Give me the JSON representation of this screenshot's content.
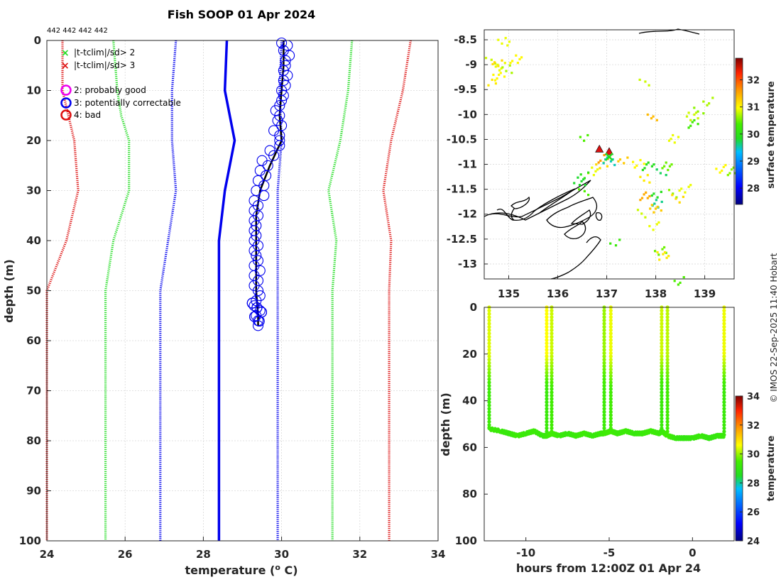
{
  "colors": {
    "green": "#22dd22",
    "red": "#dd1111",
    "blue": "#0000ee",
    "black": "#000000",
    "magenta": "#ee00ee"
  },
  "credit": "© IMOS 22-Sep-2025 11:40 Hobart",
  "chart_data": [
    {
      "type": "line",
      "title": "Fish SOOP 01 Apr 2024",
      "annotation": "442 442 442 442",
      "xlabel": "temperature (o C)",
      "xlabel_main": "temperature (",
      "xlabel_sup": "o",
      "xlabel_end": " C)",
      "ylabel": "depth (m)",
      "xlim": [
        24,
        34
      ],
      "ylim": [
        0,
        100
      ],
      "y_reversed": true,
      "grid": true,
      "xticks": [
        24,
        26,
        28,
        30,
        32,
        34
      ],
      "yticks": [
        0,
        10,
        20,
        30,
        40,
        50,
        60,
        70,
        80,
        90,
        100
      ],
      "legend": [
        {
          "label": "|t-tclim|/sd> 2",
          "marker": "x",
          "color": "#22dd22"
        },
        {
          "label": "|t-tclim|/sd> 3",
          "marker": "x",
          "color": "#dd1111"
        },
        {
          "label": "2: probably good",
          "marker": "o",
          "color": "#ee00ee"
        },
        {
          "label": "3: potentially correctable",
          "marker": "o",
          "color": "#0000ee"
        },
        {
          "label": "4: bad",
          "marker": "o",
          "color": "#dd1111"
        }
      ],
      "series": [
        {
          "name": "climatology mean",
          "style": "solid",
          "color": "#0000ee",
          "depth": [
            0,
            10,
            20,
            30,
            40,
            50,
            100
          ],
          "temp": [
            28.6,
            28.55,
            28.8,
            28.55,
            28.4,
            28.4,
            28.4
          ]
        },
        {
          "name": "-2 sd",
          "style": "dotted",
          "color": "#22dd22",
          "depth": [
            0,
            10,
            15,
            20,
            30,
            40,
            50,
            100
          ],
          "temp": [
            25.7,
            25.8,
            25.9,
            26.1,
            26.1,
            25.7,
            25.5,
            25.5
          ]
        },
        {
          "name": "+2 sd",
          "style": "dotted",
          "color": "#22dd22",
          "depth": [
            0,
            10,
            20,
            30,
            40,
            50,
            100
          ],
          "temp": [
            31.8,
            31.7,
            31.5,
            31.2,
            31.4,
            31.3,
            31.3
          ]
        },
        {
          "name": "-3 sd",
          "style": "dotted",
          "color": "#dd1111",
          "depth": [
            0,
            10,
            20,
            30,
            40,
            50,
            100
          ],
          "temp": [
            24.4,
            24.4,
            24.7,
            24.8,
            24.5,
            24.0,
            24.0
          ]
        },
        {
          "name": "+3 sd",
          "style": "dotted",
          "color": "#dd1111",
          "depth": [
            0,
            10,
            20,
            30,
            40,
            50,
            100
          ],
          "temp": [
            33.3,
            33.1,
            32.8,
            32.6,
            32.8,
            32.75,
            32.75
          ]
        },
        {
          "name": "-1 sd",
          "style": "dotted",
          "color": "#0000ee",
          "depth": [
            0,
            10,
            20,
            30,
            40,
            50,
            100
          ],
          "temp": [
            27.3,
            27.2,
            27.2,
            27.3,
            27.1,
            26.9,
            26.9
          ]
        },
        {
          "name": "+1 sd",
          "style": "dotted",
          "color": "#0000ee",
          "depth": [
            0,
            10,
            20,
            30,
            40,
            50,
            100
          ],
          "temp": [
            30.0,
            29.95,
            30.0,
            29.9,
            29.9,
            29.9,
            29.9
          ]
        },
        {
          "name": "observed profile",
          "style": "solid",
          "color": "#000000",
          "depth": [
            0,
            5,
            10,
            15,
            20,
            25,
            30,
            35,
            40,
            45,
            50,
            55,
            57
          ],
          "temp": [
            30.05,
            30.05,
            30.0,
            29.95,
            30.0,
            29.7,
            29.45,
            29.35,
            29.35,
            29.35,
            29.35,
            29.4,
            29.4
          ]
        }
      ],
      "flagged_points": {
        "flag": "3: potentially correctable",
        "color": "#0000ee",
        "depth": [
          0.5,
          1,
          2,
          3,
          4,
          5,
          6,
          7,
          8,
          9,
          10,
          11,
          12,
          13,
          14,
          15,
          16,
          17,
          18,
          19,
          20,
          21,
          22,
          23,
          24,
          25,
          26,
          27,
          28,
          29,
          30,
          31,
          32,
          33,
          34,
          35,
          36,
          37,
          38,
          39,
          40,
          41,
          42,
          43,
          44,
          45,
          46,
          47,
          48,
          49,
          50,
          51,
          52,
          53,
          54,
          55,
          56,
          57
        ],
        "temp": [
          30.0,
          30.15,
          30.05,
          30.2,
          30.1,
          30.1,
          30.05,
          30.15,
          30.05,
          30.1,
          30.0,
          30.05,
          30.0,
          29.95,
          29.85,
          29.95,
          29.9,
          30.0,
          29.8,
          29.95,
          29.95,
          29.95,
          29.7,
          29.8,
          29.5,
          29.65,
          29.45,
          29.6,
          29.4,
          29.55,
          29.35,
          29.55,
          29.3,
          29.4,
          29.3,
          29.4,
          29.3,
          29.35,
          29.3,
          29.35,
          29.3,
          29.4,
          29.3,
          29.35,
          29.4,
          29.3,
          29.45,
          29.3,
          29.4,
          29.3,
          29.4,
          29.45,
          29.35,
          29.3,
          29.45,
          29.35,
          29.4,
          29.4
        ]
      }
    },
    {
      "type": "heatmap",
      "title": "",
      "xlabel": "",
      "ylabel": "",
      "xlim": [
        134.5,
        139.6
      ],
      "ylim": [
        -13.3,
        -8.3
      ],
      "xticks": [
        135,
        136,
        137,
        138,
        139
      ],
      "yticks": [
        -8.5,
        -9,
        -9.5,
        -10,
        -10.5,
        -11,
        -11.5,
        -12,
        -12.5,
        -13
      ],
      "colorbar": {
        "label": "surface temperature",
        "range": [
          27.4,
          32.8
        ],
        "ticks": [
          28,
          29,
          30,
          31,
          32
        ]
      },
      "cells": [
        [
          134.6,
          -8.9,
          30.8
        ],
        [
          134.7,
          -8.95,
          31.2
        ],
        [
          134.8,
          -9.0,
          30.9
        ],
        [
          134.75,
          -9.2,
          31.0
        ],
        [
          134.65,
          -9.3,
          31.1
        ],
        [
          134.9,
          -9.05,
          30.7
        ],
        [
          134.85,
          -8.5,
          30.9
        ],
        [
          135.1,
          -8.85,
          31.0
        ],
        [
          137.7,
          -9.3,
          30.8
        ],
        [
          137.9,
          -10.0,
          31.4
        ],
        [
          138.3,
          -10.45,
          30.9
        ],
        [
          138.2,
          -11.0,
          30.5
        ],
        [
          138.3,
          -11.55,
          30.6
        ],
        [
          138.4,
          -11.65,
          31.2
        ],
        [
          138.55,
          -11.45,
          30.9
        ],
        [
          138.7,
          -10.0,
          30.8
        ],
        [
          138.85,
          -9.9,
          30.6
        ],
        [
          139.0,
          -9.7,
          30.7
        ],
        [
          139.3,
          -11.05,
          31.0
        ],
        [
          139.5,
          -11.1,
          30.6
        ],
        [
          136.45,
          -10.45,
          30.4
        ],
        [
          137.3,
          -10.9,
          31.3
        ],
        [
          137.6,
          -10.95,
          31.0
        ],
        [
          137.8,
          -11.0,
          29.9
        ],
        [
          138.05,
          -11.1,
          29.7
        ],
        [
          137.75,
          -11.25,
          31.1
        ],
        [
          136.65,
          -11.1,
          30.9
        ],
        [
          136.4,
          -11.3,
          29.8
        ],
        [
          136.5,
          -11.5,
          30.4
        ],
        [
          137.95,
          -11.55,
          29.9
        ],
        [
          138.0,
          -11.75,
          29.6
        ],
        [
          137.95,
          -11.85,
          31.3
        ],
        [
          137.7,
          -11.95,
          30.8
        ],
        [
          137.9,
          -12.2,
          30.9
        ],
        [
          138.05,
          -12.7,
          30.5
        ],
        [
          138.1,
          -12.8,
          31.1
        ],
        [
          137.1,
          -12.55,
          30.2
        ],
        [
          138.45,
          -13.3,
          30.4
        ],
        [
          138.7,
          -10.15,
          30.3
        ],
        [
          137.75,
          -11.6,
          31.5
        ],
        [
          136.5,
          -11.2,
          30.0
        ],
        [
          136.85,
          -11.0,
          31.2
        ],
        [
          136.9,
          -10.85,
          31.6
        ],
        [
          137.0,
          -10.9,
          29.5
        ]
      ],
      "markers": [
        {
          "type": "triangle",
          "lon": 136.85,
          "lat": -10.7,
          "color": "#dd1111"
        },
        {
          "type": "triangle",
          "lon": 137.05,
          "lat": -10.75,
          "color": "#dd1111"
        },
        {
          "type": "x",
          "lon": 137.05,
          "lat": -10.85,
          "color": "#22dd22"
        }
      ]
    },
    {
      "type": "scatter",
      "title": "",
      "xlabel": "hours from 12:00Z 01 Apr 24",
      "ylabel": "depth (m)",
      "xlim": [
        -12.5,
        2.5
      ],
      "ylim": [
        0,
        100
      ],
      "y_reversed": true,
      "grid": false,
      "xticks": [
        -10,
        -5,
        0
      ],
      "yticks": [
        0,
        20,
        40,
        60,
        80,
        100
      ],
      "colorbar": {
        "label": "temperature",
        "range": [
          24,
          34
        ],
        "ticks": [
          24,
          26,
          28,
          30,
          32,
          34
        ]
      },
      "casts": [
        {
          "time": -12.2,
          "bottom": 52,
          "surf_temp": 30.4,
          "deep_temp": 29.3
        },
        {
          "time": -8.75,
          "bottom": 55,
          "surf_temp": 30.6,
          "deep_temp": 29.2
        },
        {
          "time": -8.45,
          "bottom": 54,
          "surf_temp": 30.3,
          "deep_temp": 29.4
        },
        {
          "time": -5.3,
          "bottom": 54,
          "surf_temp": 30.0,
          "deep_temp": 29.3
        },
        {
          "time": -4.9,
          "bottom": 53,
          "surf_temp": 30.5,
          "deep_temp": 29.4
        },
        {
          "time": -1.85,
          "bottom": 53,
          "surf_temp": 30.3,
          "deep_temp": 29.2
        },
        {
          "time": -1.5,
          "bottom": 55,
          "surf_temp": 30.2,
          "deep_temp": 29.4
        },
        {
          "time": 1.9,
          "bottom": 55,
          "surf_temp": 30.5,
          "deep_temp": 29.2
        }
      ],
      "bottom_trace": {
        "time": [
          -12.2,
          -11.5,
          -11.0,
          -10.5,
          -10.0,
          -9.5,
          -9.0,
          -8.75,
          -8.45,
          -8.0,
          -7.5,
          -7.0,
          -6.5,
          -6.0,
          -5.5,
          -5.3,
          -4.9,
          -4.5,
          -4.0,
          -3.5,
          -3.0,
          -2.5,
          -2.0,
          -1.85,
          -1.5,
          -1.0,
          -0.5,
          0.0,
          0.5,
          1.0,
          1.5,
          1.9
        ],
        "depth": [
          52,
          53,
          54,
          55,
          54,
          53,
          55,
          55,
          54,
          55,
          54,
          55,
          54,
          55,
          54,
          54,
          53,
          54,
          53,
          54,
          54,
          53,
          54,
          53,
          55,
          56,
          56,
          56,
          55,
          56,
          55,
          55
        ],
        "temp": [
          29.3,
          29.2,
          29.1,
          29.3,
          29.2,
          29.3,
          29.1,
          29.2,
          29.4,
          29.2,
          29.1,
          29.2,
          29.3,
          29.1,
          29.2,
          29.3,
          29.4,
          29.2,
          29.3,
          29.1,
          29.2,
          29.3,
          29.2,
          29.2,
          29.4,
          29.1,
          29.0,
          29.1,
          29.2,
          29.0,
          29.1,
          29.2
        ]
      }
    }
  ]
}
